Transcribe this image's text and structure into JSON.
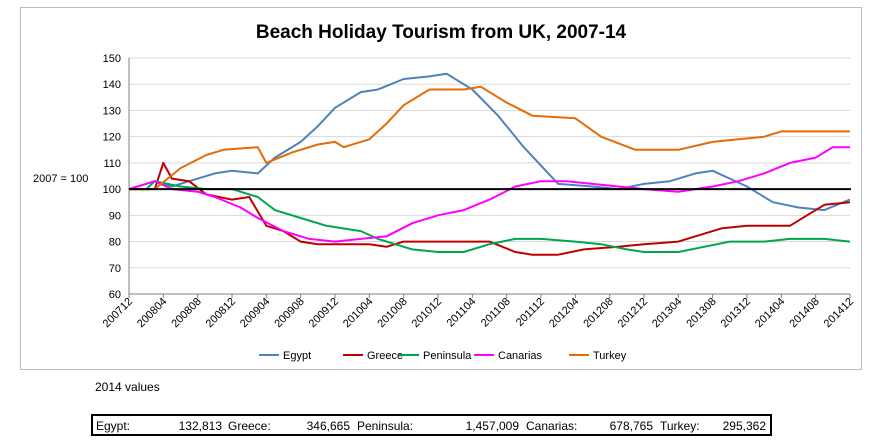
{
  "caption": "2014 values",
  "values_2014": [
    {
      "label": "Egypt:",
      "value": "132,813"
    },
    {
      "label": "Greece:",
      "value": "346,665"
    },
    {
      "label": "Peninsula:",
      "value": "1,457,009"
    },
    {
      "label": "Canarias:",
      "value": "678,765"
    },
    {
      "label": "Turkey:",
      "value": "295,362"
    }
  ],
  "chart_data": {
    "type": "line",
    "title": "Beach Holiday Tourism from UK, 2007-14",
    "ylabel": "",
    "xlabel": "",
    "ylim": [
      60,
      150
    ],
    "yticks": [
      60,
      70,
      80,
      90,
      100,
      110,
      120,
      130,
      140,
      150
    ],
    "reference_line": {
      "value": 100,
      "label": "2007 = 100"
    },
    "x_start": "200712",
    "x_end": "201412",
    "xtick_labels": [
      "200712",
      "200804",
      "200808",
      "200812",
      "200904",
      "200908",
      "200912",
      "201004",
      "201008",
      "201012",
      "201104",
      "201108",
      "201112",
      "201204",
      "201208",
      "201212",
      "201304",
      "201308",
      "201312",
      "201404",
      "201408",
      "201412"
    ],
    "grid": "horizontal",
    "legend": "bottom",
    "series": [
      {
        "name": "Egypt",
        "color": "#4f81bd",
        "points": [
          [
            "200712",
            100
          ],
          [
            "200803",
            103
          ],
          [
            "200805",
            101
          ],
          [
            "200807",
            103
          ],
          [
            "200810",
            106
          ],
          [
            "200812",
            107
          ],
          [
            "200903",
            106
          ],
          [
            "200905",
            112
          ],
          [
            "200908",
            118
          ],
          [
            "200910",
            124
          ],
          [
            "200912",
            131
          ],
          [
            "201003",
            137
          ],
          [
            "201005",
            138
          ],
          [
            "201008",
            142
          ],
          [
            "201011",
            143
          ],
          [
            "201101",
            144
          ],
          [
            "201104",
            138
          ],
          [
            "201107",
            128
          ],
          [
            "201110",
            116
          ],
          [
            "201202",
            102
          ],
          [
            "201206",
            101
          ],
          [
            "201209",
            100
          ],
          [
            "201212",
            102
          ],
          [
            "201303",
            103
          ],
          [
            "201306",
            106
          ],
          [
            "201308",
            107
          ],
          [
            "201310",
            104
          ],
          [
            "201312",
            101
          ],
          [
            "201403",
            95
          ],
          [
            "201406",
            93
          ],
          [
            "201409",
            92
          ],
          [
            "201412",
            96
          ]
        ]
      },
      {
        "name": "Greece",
        "color": "#c00000",
        "points": [
          [
            "200712",
            100
          ],
          [
            "200803",
            100
          ],
          [
            "200804",
            110
          ],
          [
            "200805",
            104
          ],
          [
            "200807",
            103
          ],
          [
            "200809",
            98
          ],
          [
            "200812",
            96
          ],
          [
            "200902",
            97
          ],
          [
            "200904",
            86
          ],
          [
            "200906",
            84
          ],
          [
            "200908",
            80
          ],
          [
            "200910",
            79
          ],
          [
            "201001",
            79
          ],
          [
            "201004",
            79
          ],
          [
            "201006",
            78
          ],
          [
            "201008",
            80
          ],
          [
            "201011",
            80
          ],
          [
            "201103",
            80
          ],
          [
            "201106",
            80
          ],
          [
            "201109",
            76
          ],
          [
            "201111",
            75
          ],
          [
            "201202",
            75
          ],
          [
            "201205",
            77
          ],
          [
            "201209",
            78
          ],
          [
            "201212",
            79
          ],
          [
            "201304",
            80
          ],
          [
            "201306",
            82
          ],
          [
            "201309",
            85
          ],
          [
            "201312",
            86
          ],
          [
            "201405",
            86
          ],
          [
            "201407",
            90
          ],
          [
            "201409",
            94
          ],
          [
            "201412",
            95
          ]
        ]
      },
      {
        "name": "Peninsula",
        "color": "#00a550",
        "points": [
          [
            "200712",
            100
          ],
          [
            "200802",
            100
          ],
          [
            "200803",
            103
          ],
          [
            "200806",
            101
          ],
          [
            "200809",
            100
          ],
          [
            "200812",
            100
          ],
          [
            "200903",
            97
          ],
          [
            "200905",
            92
          ],
          [
            "200908",
            89
          ],
          [
            "200911",
            86
          ],
          [
            "201003",
            84
          ],
          [
            "201005",
            81
          ],
          [
            "201007",
            79
          ],
          [
            "201009",
            77
          ],
          [
            "201012",
            76
          ],
          [
            "201103",
            76
          ],
          [
            "201106",
            79
          ],
          [
            "201109",
            81
          ],
          [
            "201112",
            81
          ],
          [
            "201204",
            80
          ],
          [
            "201207",
            79
          ],
          [
            "201210",
            77
          ],
          [
            "201212",
            76
          ],
          [
            "201304",
            76
          ],
          [
            "201307",
            78
          ],
          [
            "201310",
            80
          ],
          [
            "201402",
            80
          ],
          [
            "201405",
            81
          ],
          [
            "201409",
            81
          ],
          [
            "201412",
            80
          ]
        ]
      },
      {
        "name": "Canarias",
        "color": "#ff00ff",
        "points": [
          [
            "200712",
            100
          ],
          [
            "200803",
            103
          ],
          [
            "200805",
            100
          ],
          [
            "200808",
            99
          ],
          [
            "200810",
            97
          ],
          [
            "200901",
            93
          ],
          [
            "200903",
            89
          ],
          [
            "200906",
            84
          ],
          [
            "200909",
            81
          ],
          [
            "200912",
            80
          ],
          [
            "201003",
            81
          ],
          [
            "201006",
            82
          ],
          [
            "201009",
            87
          ],
          [
            "201012",
            90
          ],
          [
            "201103",
            92
          ],
          [
            "201106",
            96
          ],
          [
            "201109",
            101
          ],
          [
            "201112",
            103
          ],
          [
            "201203",
            103
          ],
          [
            "201206",
            102
          ],
          [
            "201209",
            101
          ],
          [
            "201212",
            100
          ],
          [
            "201304",
            99
          ],
          [
            "201308",
            101
          ],
          [
            "201311",
            103
          ],
          [
            "201402",
            106
          ],
          [
            "201405",
            110
          ],
          [
            "201408",
            112
          ],
          [
            "201410",
            116
          ],
          [
            "201412",
            116
          ]
        ]
      },
      {
        "name": "Turkey",
        "color": "#e36c09",
        "points": [
          [
            "200712",
            100
          ],
          [
            "200803",
            100
          ],
          [
            "200806",
            108
          ],
          [
            "200809",
            113
          ],
          [
            "200811",
            115
          ],
          [
            "201001",
            116
          ],
          [
            "200903",
            116
          ],
          [
            "200904",
            110
          ],
          [
            "200907",
            114
          ],
          [
            "200910",
            117
          ],
          [
            "200912",
            118
          ],
          [
            "201003",
            118
          ],
          [
            "201004",
            119
          ],
          [
            "201006",
            125
          ],
          [
            "201008",
            132
          ],
          [
            "201011",
            138
          ],
          [
            "201103",
            138
          ],
          [
            "201105",
            139
          ],
          [
            "201108",
            133
          ],
          [
            "201111",
            128
          ],
          [
            "201204",
            127
          ],
          [
            "201207",
            120
          ],
          [
            "201211",
            115
          ],
          [
            "201304",
            115
          ],
          [
            "201308",
            118
          ],
          [
            "201311",
            119
          ],
          [
            "201402",
            120
          ],
          [
            "201404",
            122
          ],
          [
            "201408",
            122
          ],
          [
            "201412",
            122
          ]
        ]
      }
    ]
  }
}
